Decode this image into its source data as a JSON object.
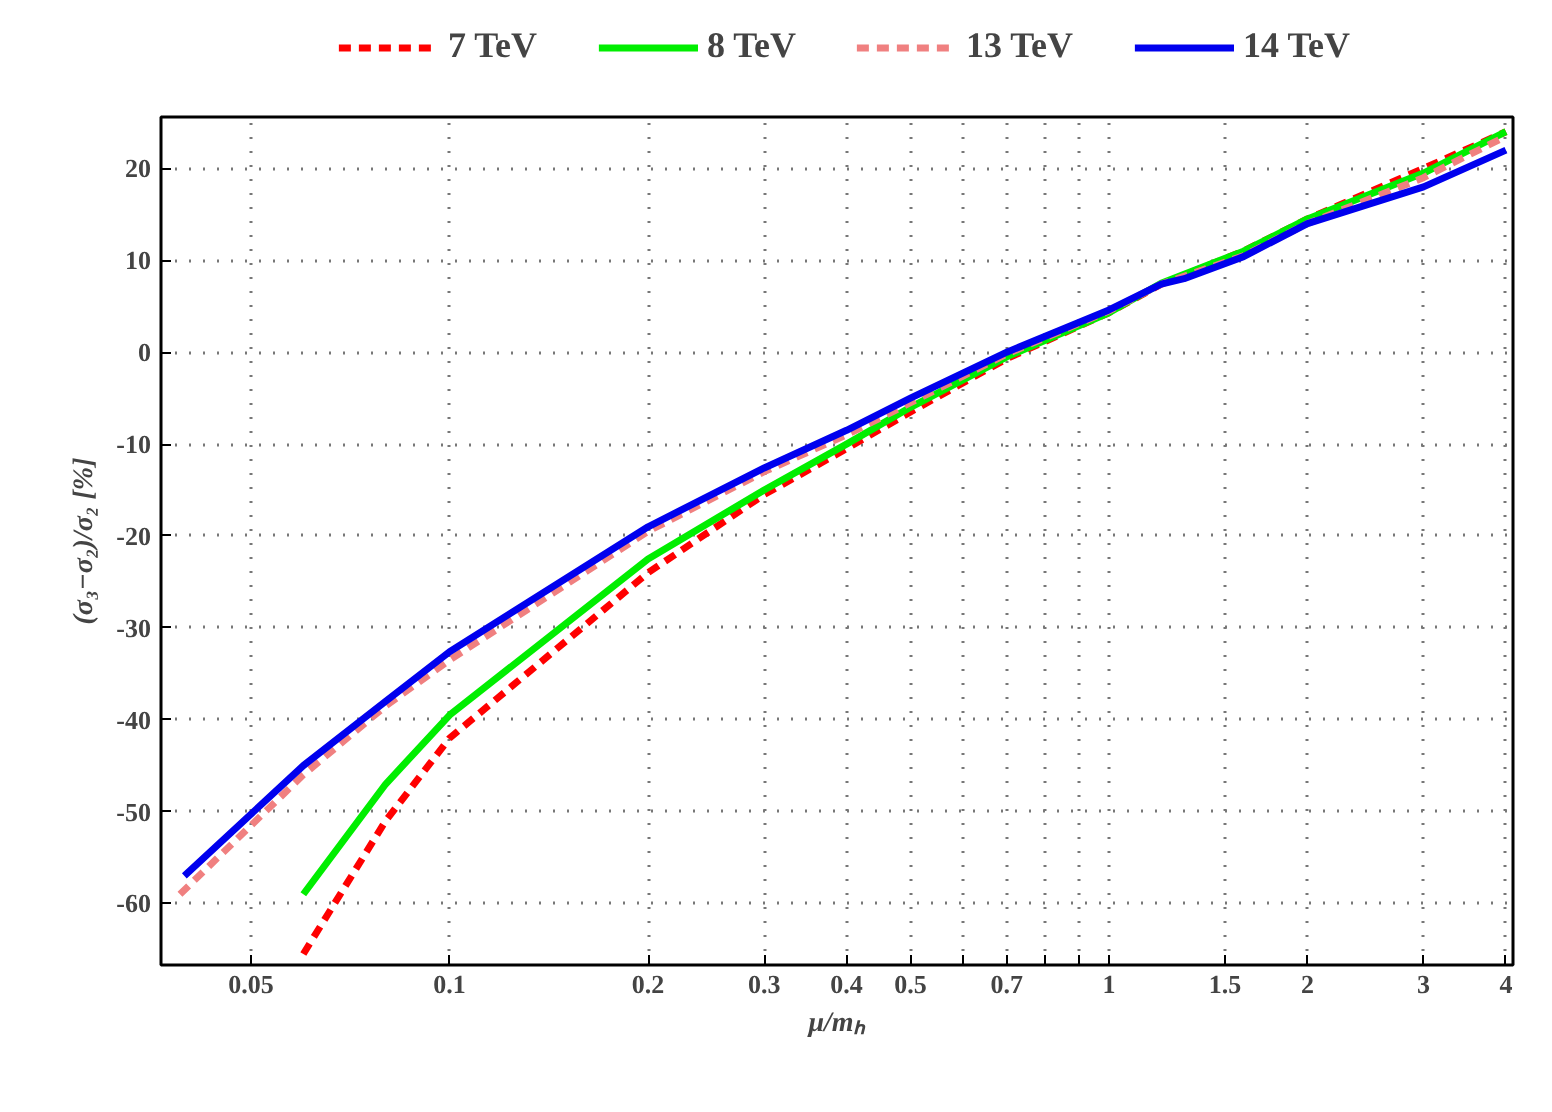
{
  "chart_data": {
    "type": "line",
    "xlabel": "μ/mₕ",
    "ylabel": "(σ₃−σ₂)/σ₂ [%]",
    "log": "x",
    "grid": true,
    "legend": "top",
    "line_style": "solid",
    "xlim": [
      0.0365,
      4.1
    ],
    "ylim": [
      -66.7,
      25.6
    ],
    "xticks": [
      0.05,
      0.1,
      0.2,
      0.3,
      0.4,
      0.5,
      {
        "value": 0.6,
        "label": null
      },
      0.7,
      {
        "value": 0.8,
        "label": null
      },
      {
        "value": 0.9,
        "label": null
      },
      1,
      1.5,
      2,
      3,
      4
    ],
    "yticks": [
      -60,
      -50,
      -40,
      -30,
      -20,
      -10,
      0,
      10,
      20
    ],
    "series": [
      {
        "name": "7 TeV",
        "color": "#ff0000",
        "line_style": "dashed",
        "x": [
          0.06,
          0.08,
          0.1,
          0.2,
          0.3,
          0.4,
          0.5,
          0.7,
          1,
          1.2,
          1.6,
          2,
          3,
          4
        ],
        "values": [
          -65.5,
          -51,
          -42,
          -24,
          -15.5,
          -10.5,
          -6.5,
          -0.7,
          4.3,
          7.4,
          11,
          14.5,
          20,
          24
        ]
      },
      {
        "name": "8 TeV",
        "color": "#00ee00",
        "x": [
          0.06,
          0.08,
          0.1,
          0.2,
          0.3,
          0.4,
          0.5,
          0.7,
          1,
          1.2,
          1.6,
          2,
          3,
          4
        ],
        "values": [
          -59,
          -47,
          -39.5,
          -22.5,
          -15,
          -10,
          -6,
          -0.5,
          4.3,
          7.5,
          11,
          14.5,
          19.5,
          24
        ]
      },
      {
        "name": "13 TeV",
        "color": "#f08080",
        "line_style": "dashed",
        "x": [
          0.039,
          0.06,
          0.08,
          0.1,
          0.2,
          0.3,
          0.4,
          0.5,
          0.7,
          1,
          1.2,
          1.6,
          2,
          3,
          4
        ],
        "values": [
          -59,
          -46,
          -38.5,
          -33.5,
          -19.5,
          -13,
          -9,
          -5.5,
          -0.2,
          4.5,
          7.4,
          10.5,
          14,
          19,
          23.5
        ]
      },
      {
        "name": "14 TeV",
        "color": "#0000ee",
        "x": [
          0.0396,
          0.06,
          0.08,
          0.1,
          0.2,
          0.3,
          0.4,
          0.5,
          0.7,
          1,
          1.2,
          1.3,
          1.6,
          2,
          3,
          4
        ],
        "values": [
          -57,
          -45,
          -38,
          -32.6,
          -19,
          -12.6,
          -8.5,
          -5,
          0,
          4.6,
          7.4,
          8,
          10.4,
          14,
          18,
          22
        ]
      }
    ]
  }
}
